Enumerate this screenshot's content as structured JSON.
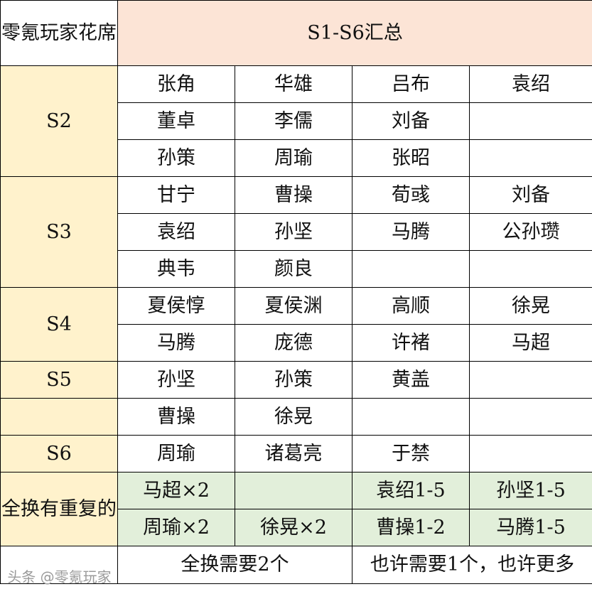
{
  "header": {
    "corner": "零氪玩家花席",
    "title": "S1-S6汇总"
  },
  "groups": [
    {
      "season": "S2",
      "rows": [
        [
          "张角",
          "华雄",
          "吕布",
          "袁绍"
        ],
        [
          "董卓",
          "李儒",
          "刘备",
          ""
        ],
        [
          "孙策",
          "周瑜",
          "张昭",
          ""
        ]
      ]
    },
    {
      "season": "S3",
      "rows": [
        [
          "甘宁",
          "曹操",
          "荀彧",
          "刘备"
        ],
        [
          "袁绍",
          "孙坚",
          "马腾",
          "公孙瓒"
        ],
        [
          "典韦",
          "颜良",
          "",
          ""
        ]
      ]
    },
    {
      "season": "S4",
      "rows": [
        [
          "夏侯惇",
          "夏侯渊",
          "高顺",
          "徐晃"
        ],
        [
          "马腾",
          "庞德",
          "许褚",
          "马超"
        ]
      ]
    },
    {
      "season": "S5",
      "rows": [
        [
          "孙坚",
          "孙策",
          "黄盖",
          ""
        ]
      ]
    },
    {
      "season": "",
      "rows": [
        [
          "曹操",
          "徐晃",
          "",
          ""
        ]
      ]
    },
    {
      "season": "S6",
      "rows": [
        [
          "周瑜",
          "诸葛亮",
          "于禁",
          ""
        ]
      ]
    }
  ],
  "repeats": {
    "label": "全换有重复的",
    "rows": [
      [
        "马超×2",
        "",
        "袁绍1-5",
        "孙坚1-5"
      ],
      [
        "周瑜×2",
        "徐晃×2",
        "曹操1-2",
        "马腾1-5"
      ]
    ]
  },
  "footer": {
    "left": "",
    "need_two": "全换需要2个",
    "maybe": "也许需要1个，也许更多"
  },
  "watermark": "头条 @零氪玩家",
  "colors": {
    "title_bg": "#fce4d6",
    "season_bg": "#fff2cc",
    "repeat_bg": "#e2efda"
  }
}
